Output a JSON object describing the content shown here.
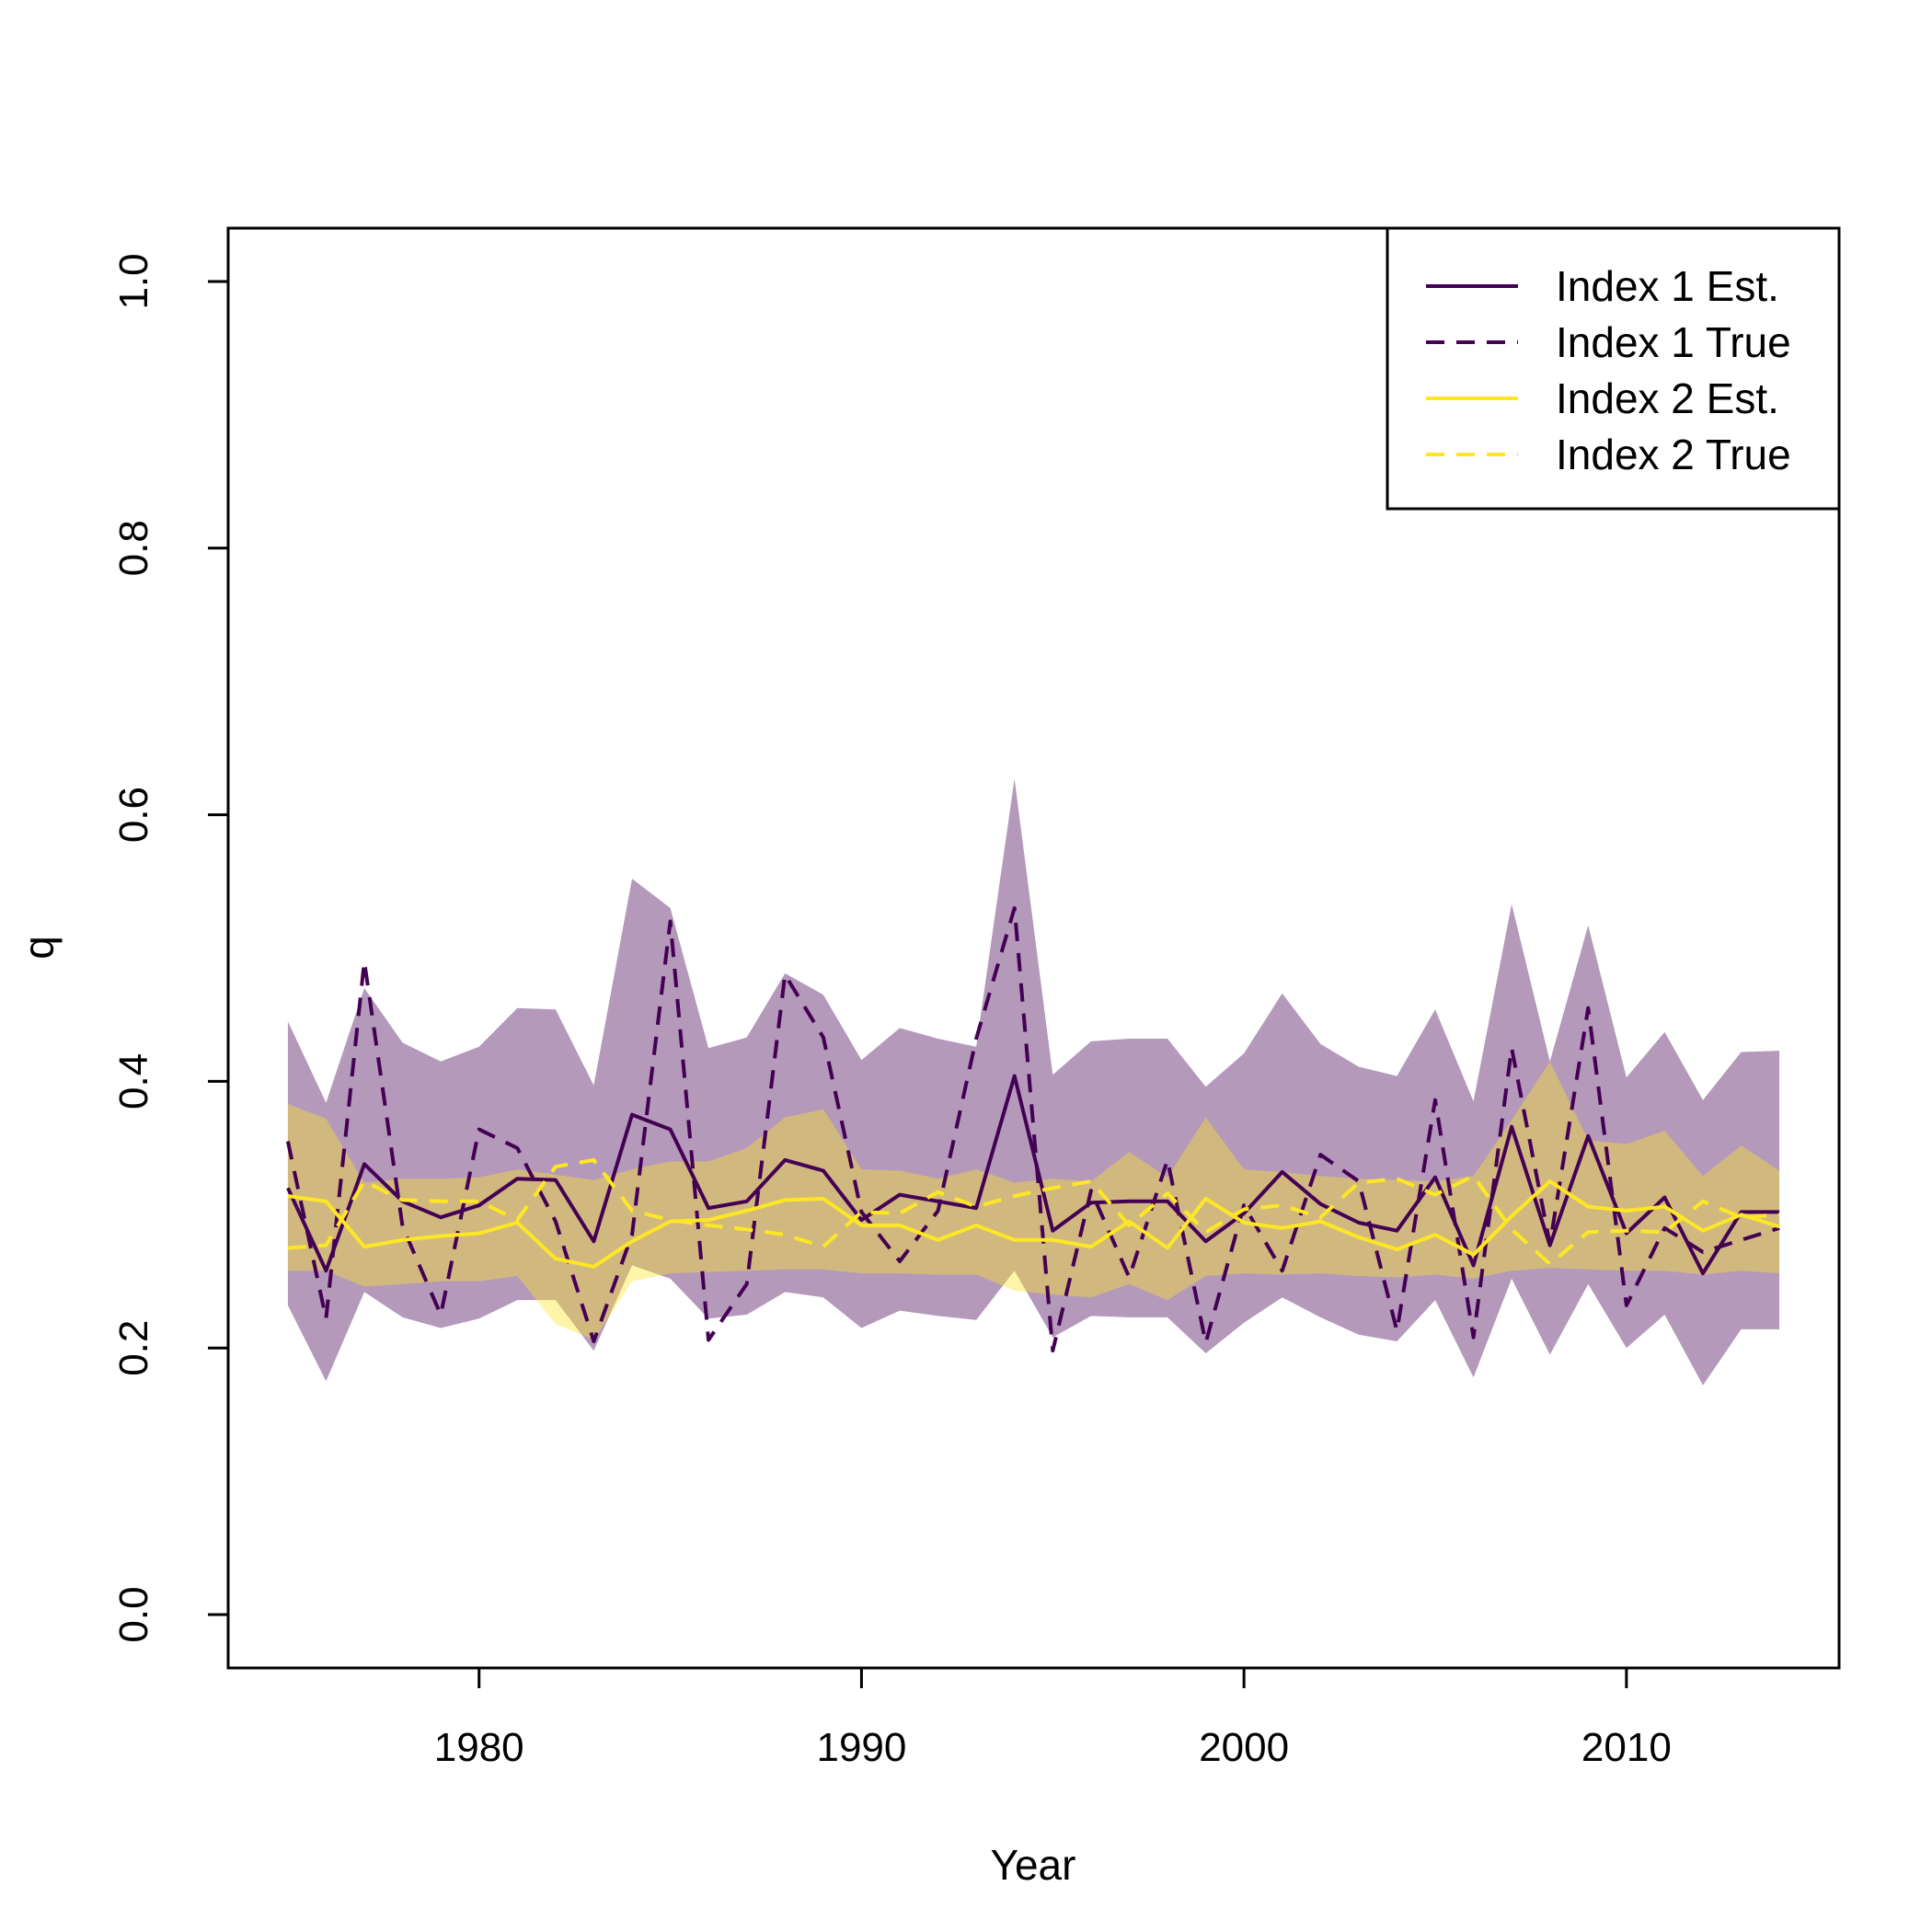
{
  "chart_data": {
    "type": "line",
    "title": "",
    "xlabel": "Year",
    "ylabel": "q",
    "xlim": [
      1973.44,
      2015.56
    ],
    "ylim": [
      -0.04,
      1.04
    ],
    "x_ticks": [
      1980,
      1990,
      2000,
      2010
    ],
    "y_ticks": [
      0.0,
      0.2,
      0.4,
      0.6,
      0.8,
      1.0
    ],
    "x_tick_labels": [
      "1980",
      "1990",
      "2000",
      "2010"
    ],
    "y_tick_labels": [
      "0.0",
      "0.2",
      "0.4",
      "0.6",
      "0.8",
      "1.0"
    ],
    "grid": false,
    "legend_position": "top-right",
    "x": [
      1975,
      1976,
      1977,
      1978,
      1979,
      1980,
      1981,
      1982,
      1983,
      1984,
      1985,
      1986,
      1987,
      1988,
      1989,
      1990,
      1991,
      1992,
      1993,
      1994,
      1995,
      1996,
      1997,
      1998,
      1999,
      2000,
      2001,
      2002,
      2003,
      2004,
      2005,
      2006,
      2007,
      2008,
      2009,
      2010,
      2011,
      2012,
      2013,
      2014
    ],
    "bands": [
      {
        "series": "Index 1 Est.",
        "color": "#440154",
        "opacity": 0.4,
        "lower": [
          0.232,
          0.175,
          0.242,
          0.223,
          0.215,
          0.222,
          0.236,
          0.236,
          0.198,
          0.262,
          0.252,
          0.222,
          0.225,
          0.242,
          0.238,
          0.215,
          0.228,
          0.224,
          0.221,
          0.258,
          0.208,
          0.224,
          0.223,
          0.223,
          0.196,
          0.219,
          0.238,
          0.223,
          0.21,
          0.205,
          0.236,
          0.178,
          0.252,
          0.195,
          0.248,
          0.2,
          0.225,
          0.172,
          0.214,
          0.214
        ],
        "upper": [
          0.445,
          0.384,
          0.47,
          0.429,
          0.415,
          0.426,
          0.455,
          0.454,
          0.397,
          0.552,
          0.53,
          0.425,
          0.433,
          0.481,
          0.465,
          0.416,
          0.44,
          0.432,
          0.426,
          0.627,
          0.405,
          0.43,
          0.432,
          0.432,
          0.396,
          0.421,
          0.466,
          0.428,
          0.411,
          0.404,
          0.454,
          0.385,
          0.533,
          0.415,
          0.517,
          0.403,
          0.437,
          0.386,
          0.422,
          0.423
        ]
      },
      {
        "series": "Index 2 Est.",
        "color": "#FDE725",
        "opacity": 0.4,
        "lower": [
          0.258,
          0.258,
          0.246,
          0.248,
          0.25,
          0.25,
          0.254,
          0.218,
          0.206,
          0.25,
          0.256,
          0.257,
          0.258,
          0.259,
          0.259,
          0.256,
          0.256,
          0.255,
          0.255,
          0.243,
          0.24,
          0.238,
          0.248,
          0.236,
          0.254,
          0.256,
          0.255,
          0.256,
          0.254,
          0.253,
          0.255,
          0.252,
          0.258,
          0.26,
          0.259,
          0.258,
          0.258,
          0.255,
          0.258,
          0.256
        ],
        "upper": [
          0.383,
          0.372,
          0.324,
          0.327,
          0.327,
          0.328,
          0.334,
          0.33,
          0.326,
          0.334,
          0.34,
          0.34,
          0.35,
          0.373,
          0.379,
          0.334,
          0.333,
          0.327,
          0.334,
          0.324,
          0.327,
          0.325,
          0.347,
          0.328,
          0.373,
          0.334,
          0.332,
          0.329,
          0.327,
          0.326,
          0.325,
          0.329,
          0.371,
          0.415,
          0.356,
          0.353,
          0.363,
          0.329,
          0.352,
          0.333
        ]
      }
    ],
    "series": [
      {
        "name": "Index 1 Est.",
        "color": "#440154",
        "dash": "solid",
        "values": [
          0.32,
          0.258,
          0.338,
          0.31,
          0.298,
          0.307,
          0.327,
          0.326,
          0.28,
          0.375,
          0.364,
          0.305,
          0.31,
          0.341,
          0.333,
          0.296,
          0.315,
          0.31,
          0.305,
          0.404,
          0.288,
          0.309,
          0.31,
          0.31,
          0.28,
          0.301,
          0.332,
          0.308,
          0.294,
          0.288,
          0.328,
          0.262,
          0.366,
          0.277,
          0.359,
          0.286,
          0.313,
          0.256,
          0.302,
          0.302
        ]
      },
      {
        "name": "Index 1 True",
        "color": "#440154",
        "dash": "dashed",
        "values": [
          0.355,
          0.222,
          0.49,
          0.291,
          0.225,
          0.364,
          0.35,
          0.295,
          0.205,
          0.285,
          0.52,
          0.206,
          0.248,
          0.48,
          0.433,
          0.302,
          0.265,
          0.303,
          0.432,
          0.53,
          0.198,
          0.318,
          0.253,
          0.341,
          0.204,
          0.307,
          0.258,
          0.345,
          0.325,
          0.213,
          0.386,
          0.208,
          0.425,
          0.278,
          0.455,
          0.232,
          0.29,
          0.272,
          0.281,
          0.29
        ]
      },
      {
        "name": "Index 2 Est.",
        "color": "#FDE725",
        "dash": "solid",
        "values": [
          0.314,
          0.31,
          0.276,
          0.281,
          0.284,
          0.286,
          0.294,
          0.267,
          0.261,
          0.28,
          0.295,
          0.296,
          0.303,
          0.311,
          0.312,
          0.292,
          0.292,
          0.281,
          0.292,
          0.281,
          0.281,
          0.276,
          0.295,
          0.275,
          0.312,
          0.294,
          0.29,
          0.295,
          0.283,
          0.274,
          0.285,
          0.27,
          0.299,
          0.325,
          0.306,
          0.303,
          0.306,
          0.288,
          0.3,
          0.291
        ]
      },
      {
        "name": "Index 2 True",
        "color": "#FDE725",
        "dash": "dashed",
        "values": [
          0.275,
          0.277,
          0.325,
          0.311,
          0.31,
          0.31,
          0.296,
          0.336,
          0.341,
          0.303,
          0.296,
          0.292,
          0.289,
          0.285,
          0.276,
          0.302,
          0.301,
          0.317,
          0.306,
          0.314,
          0.32,
          0.325,
          0.292,
          0.316,
          0.287,
          0.304,
          0.307,
          0.298,
          0.324,
          0.327,
          0.315,
          0.329,
          0.289,
          0.263,
          0.287,
          0.288,
          0.287,
          0.31,
          0.298,
          0.3
        ]
      }
    ]
  }
}
